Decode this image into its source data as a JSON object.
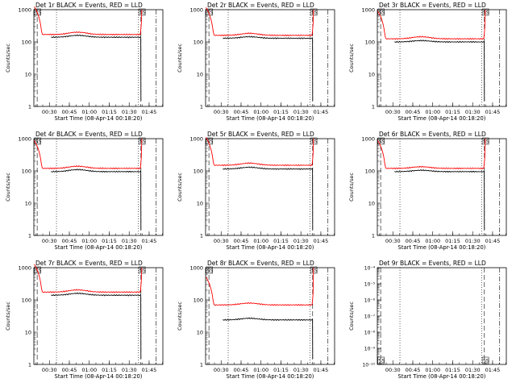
{
  "common": {
    "xlabel": "Start Time (08-Apr-14 00:18:20)",
    "ylabel": "Counts/sec",
    "x_ticks_pattern_a": [
      "00:30",
      "00:45",
      "01:00",
      "01:15",
      "01:30",
      "01:45"
    ],
    "x_ticks_pattern_b": [
      "00:30",
      "00:45",
      "01:00",
      "01:15",
      "01:30",
      "01:45"
    ],
    "marker_label": "SS",
    "colors": {
      "events": "#000000",
      "lld": "#ff0000",
      "axis": "#000000"
    },
    "time_range_minutes": [
      0,
      97
    ],
    "ylim_log": [
      1,
      1000
    ],
    "y_ticks": [
      "1",
      "10",
      "100",
      "1000"
    ]
  },
  "chart_data": [
    {
      "type": "line",
      "title": "Det 1r BLACK = Events, RED = LLD",
      "yscale": "log",
      "ylim": [
        1,
        1000
      ],
      "series": [
        {
          "name": "Events",
          "color": "#000000",
          "level": 140,
          "bump": 160
        },
        {
          "name": "LLD",
          "color": "#ff0000",
          "level": 170,
          "bump": 200
        }
      ],
      "x_ticks": [
        "00:30",
        "00:45",
        "01:00",
        "01:15",
        "01:30",
        "01:45"
      ]
    },
    {
      "type": "line",
      "title": "Det 2r BLACK = Events, RED = LLD",
      "yscale": "log",
      "ylim": [
        1,
        1000
      ],
      "series": [
        {
          "name": "Events",
          "color": "#000000",
          "level": 130,
          "bump": 145
        },
        {
          "name": "LLD",
          "color": "#ff0000",
          "level": 160,
          "bump": 185
        }
      ],
      "x_ticks": [
        "00:30",
        "00:45",
        "01:00",
        "01:15",
        "01:30",
        "01:45"
      ]
    },
    {
      "type": "line",
      "title": "Det 3r BLACK = Events, RED = LLD",
      "yscale": "log",
      "ylim": [
        1,
        1000
      ],
      "series": [
        {
          "name": "Events",
          "color": "#000000",
          "level": 100,
          "bump": 110
        },
        {
          "name": "LLD",
          "color": "#ff0000",
          "level": 125,
          "bump": 145
        }
      ],
      "x_ticks": [
        "00:30",
        "00:45",
        "01:00",
        "01:15",
        "01:30",
        "01:45"
      ]
    },
    {
      "type": "line",
      "title": "Det 4r BLACK = Events, RED = LLD",
      "yscale": "log",
      "ylim": [
        1,
        1000
      ],
      "series": [
        {
          "name": "Events",
          "color": "#000000",
          "level": 95,
          "bump": 110
        },
        {
          "name": "LLD",
          "color": "#ff0000",
          "level": 120,
          "bump": 140
        }
      ],
      "x_ticks": [
        "00:30",
        "00:45",
        "01:00",
        "01:15",
        "01:30",
        "01:45"
      ]
    },
    {
      "type": "line",
      "title": "Det 5r BLACK = Events, RED = LLD",
      "yscale": "log",
      "ylim": [
        1,
        1000
      ],
      "series": [
        {
          "name": "Events",
          "color": "#000000",
          "level": 115,
          "bump": 130
        },
        {
          "name": "LLD",
          "color": "#ff0000",
          "level": 150,
          "bump": 175
        }
      ],
      "x_ticks": [
        "00:30",
        "00:45",
        "01:00",
        "01:15",
        "01:30",
        "01:45"
      ]
    },
    {
      "type": "line",
      "title": "Det 6r BLACK = Events, RED = LLD",
      "yscale": "log",
      "ylim": [
        1,
        1000
      ],
      "series": [
        {
          "name": "Events",
          "color": "#000000",
          "level": 95,
          "bump": 105
        },
        {
          "name": "LLD",
          "color": "#ff0000",
          "level": 120,
          "bump": 135
        }
      ],
      "x_ticks": [
        "00:30",
        "00:45",
        "01:00",
        "01:15",
        "01:30",
        "01:45"
      ]
    },
    {
      "type": "line",
      "title": "Det 7r BLACK = Events, RED = LLD",
      "yscale": "log",
      "ylim": [
        1,
        1000
      ],
      "series": [
        {
          "name": "Events",
          "color": "#000000",
          "level": 140,
          "bump": 160
        },
        {
          "name": "LLD",
          "color": "#ff0000",
          "level": 175,
          "bump": 205
        }
      ],
      "x_ticks": [
        "00:30",
        "00:45",
        "01:00",
        "01:15",
        "01:30",
        "01:45"
      ]
    },
    {
      "type": "line",
      "title": "Det 8r BLACK = Events, RED = LLD",
      "yscale": "log",
      "ylim": [
        1,
        1000
      ],
      "series": [
        {
          "name": "Events",
          "color": "#000000",
          "level": 24,
          "bump": 27
        },
        {
          "name": "LLD",
          "color": "#ff0000",
          "level": 70,
          "bump": 80
        }
      ],
      "x_ticks": [
        "00:30",
        "00:45",
        "01:00",
        "01:15",
        "01:30",
        "01:45"
      ]
    },
    {
      "type": "line",
      "title": "Det 9r BLACK = Events, RED = LLD",
      "yscale": "log",
      "ylim": [
        1e-10,
        0.0001
      ],
      "y_ticks": [
        "10⁻¹⁰",
        "10⁻⁹",
        "10⁻⁸",
        "10⁻⁷",
        "10⁻⁶",
        "10⁻⁵",
        "10⁻⁴"
      ],
      "series": [],
      "x_ticks": [
        "00:30",
        "00:45",
        "01:00",
        "01:15",
        "01:30",
        "01:45"
      ]
    }
  ]
}
